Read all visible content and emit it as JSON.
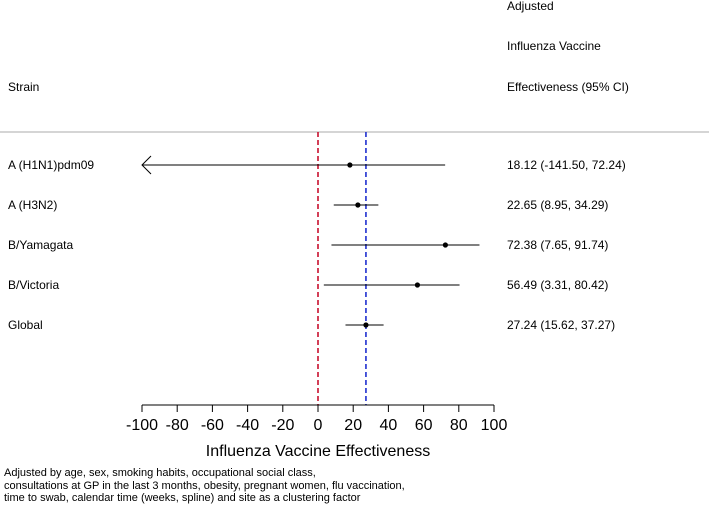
{
  "chart_data": {
    "type": "forest",
    "header": {
      "strain": "Strain",
      "ve_lines": [
        "Adjusted",
        "Influenza Vaccine",
        "Effectiveness (95% CI)"
      ]
    },
    "xlabel": "Influenza Vaccine Effectiveness",
    "xlim": [
      -100,
      100
    ],
    "ticks": [
      -100,
      -80,
      -60,
      -40,
      -20,
      0,
      20,
      40,
      60,
      80,
      100
    ],
    "reference_lines": [
      {
        "value": 0,
        "color": "#c8102e",
        "style": "dashed"
      },
      {
        "value": 27.24,
        "color": "#1f2fd0",
        "style": "dashed"
      }
    ],
    "rows": [
      {
        "strain": "A (H1N1)pdm09",
        "estimate": 18.12,
        "lower": -141.5,
        "upper": 72.24,
        "label": "18.12 (-141.50, 72.24)",
        "lower_truncated": true
      },
      {
        "strain": "A (H3N2)",
        "estimate": 22.65,
        "lower": 8.95,
        "upper": 34.29,
        "label": "22.65 (8.95, 34.29)"
      },
      {
        "strain": "B/Yamagata",
        "estimate": 72.38,
        "lower": 7.65,
        "upper": 91.74,
        "label": "72.38 (7.65, 91.74)"
      },
      {
        "strain": "B/Victoria",
        "estimate": 56.49,
        "lower": 3.31,
        "upper": 80.42,
        "label": "56.49 (3.31, 80.42)"
      },
      {
        "strain": "Global",
        "estimate": 27.24,
        "lower": 15.62,
        "upper": 37.27,
        "label": "27.24 (15.62, 37.27)"
      }
    ]
  },
  "footnote": [
    "Adjusted by age, sex, smoking habits, occupational social class,",
    "consultations at GP in the last 3 months, obesity, pregnant women, flu vaccination,",
    "time to swab, calendar time (weeks, spline) and site as a clustering factor"
  ]
}
